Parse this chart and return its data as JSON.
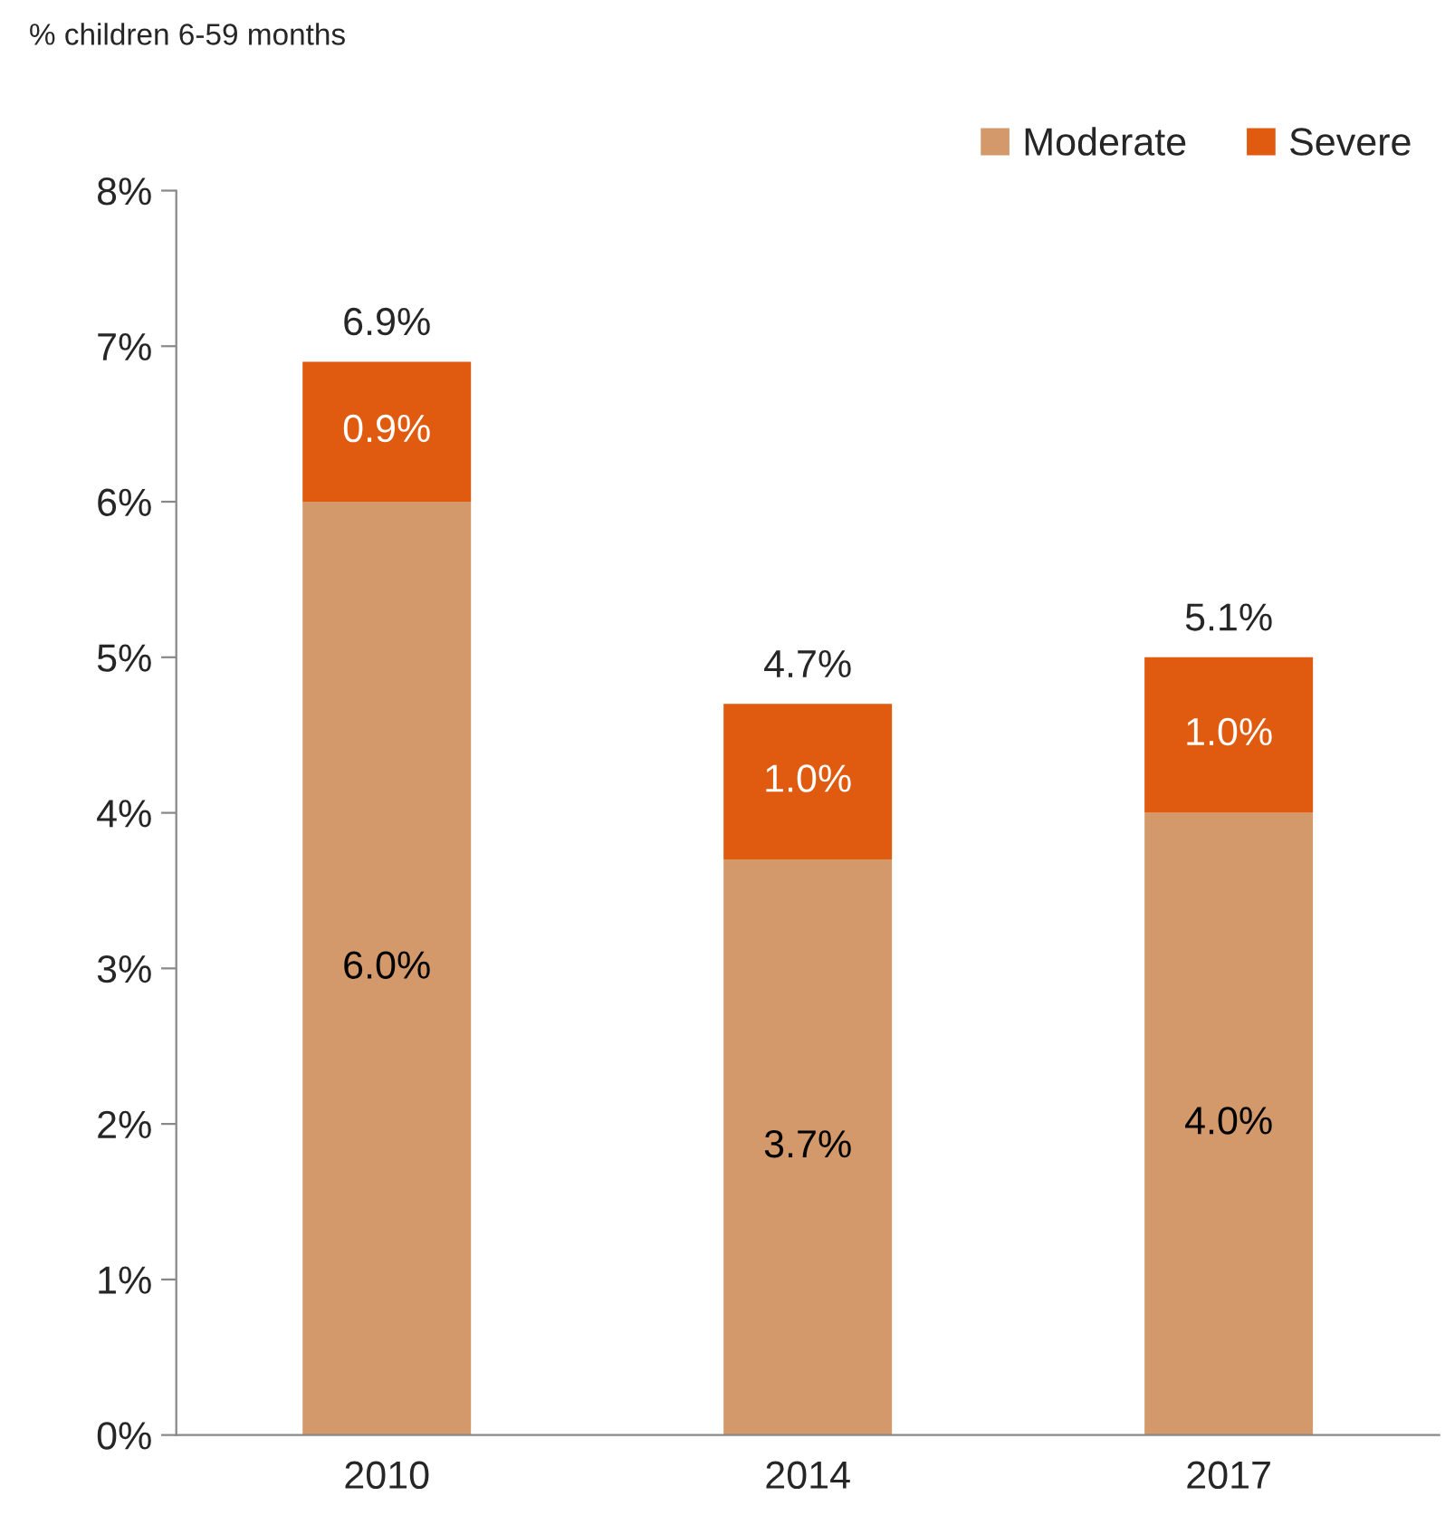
{
  "chart_data": {
    "type": "bar",
    "stacked": true,
    "ylabel": "% children 6-59 months",
    "categories": [
      "2010",
      "2014",
      "2017"
    ],
    "series": [
      {
        "name": "Moderate",
        "color": "#d4996b",
        "values": [
          6.0,
          3.7,
          4.0
        ],
        "value_labels": [
          "6.0%",
          "3.7%",
          "4.0%"
        ]
      },
      {
        "name": "Severe",
        "color": "#e05a10",
        "values": [
          0.9,
          1.0,
          1.0
        ],
        "value_labels": [
          "0.9%",
          "1.0%",
          "1.0%"
        ]
      }
    ],
    "totals": [
      "6.9%",
      "4.7%",
      "5.1%"
    ],
    "ylim": [
      0,
      8
    ],
    "yticks": [
      {
        "value": 0,
        "label": "0%"
      },
      {
        "value": 1,
        "label": "1%"
      },
      {
        "value": 2,
        "label": "2%"
      },
      {
        "value": 3,
        "label": "3%"
      },
      {
        "value": 4,
        "label": "4%"
      },
      {
        "value": 5,
        "label": "5%"
      },
      {
        "value": 6,
        "label": "6%"
      },
      {
        "value": 7,
        "label": "7%"
      },
      {
        "value": 8,
        "label": "8%"
      }
    ],
    "grid": false,
    "legend": "top right"
  }
}
